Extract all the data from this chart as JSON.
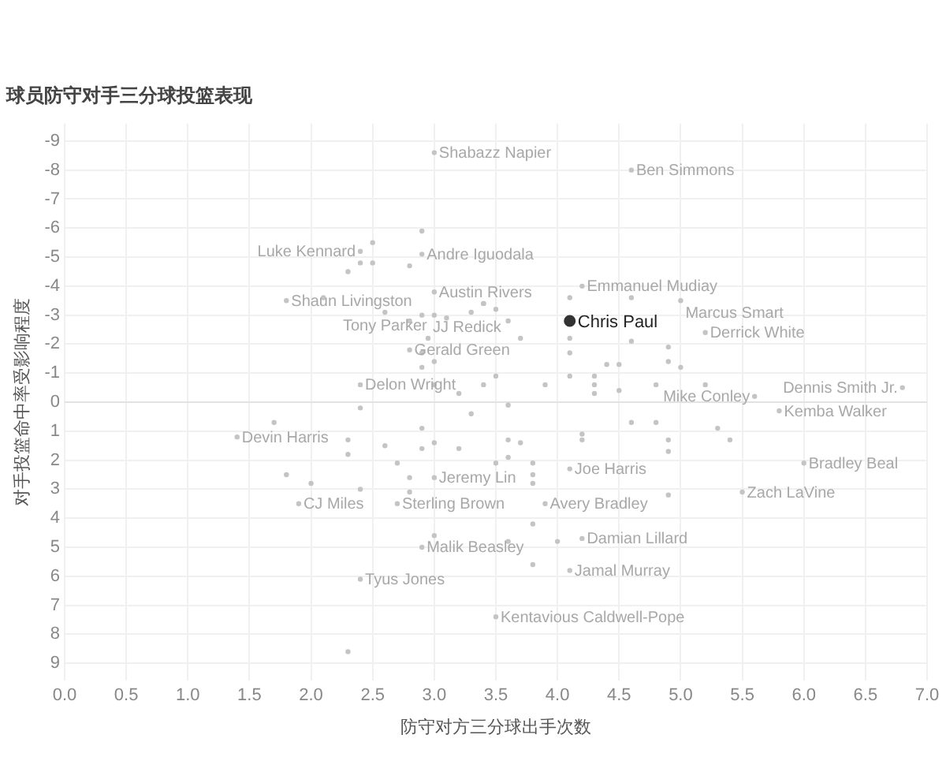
{
  "chart_data": {
    "type": "scatter",
    "title": "球员防守对手三分球投篮表现",
    "xlabel": "防守对方三分球出手次数",
    "ylabel": "对手投篮命中率受影响程度",
    "xlim": [
      0,
      7.0
    ],
    "xticks": [
      {
        "value": 0,
        "label": "0.0"
      },
      {
        "value": 0.5,
        "label": "0.5"
      },
      {
        "value": 1,
        "label": "1.0"
      },
      {
        "value": 1.5,
        "label": "1.5"
      },
      {
        "value": 2,
        "label": "2.0"
      },
      {
        "value": 2.5,
        "label": "2.5"
      },
      {
        "value": 3,
        "label": "3.0"
      },
      {
        "value": 3.5,
        "label": "3.5"
      },
      {
        "value": 4,
        "label": "4.0"
      },
      {
        "value": 4.5,
        "label": "4.5"
      },
      {
        "value": 5,
        "label": "5.0"
      },
      {
        "value": 5.5,
        "label": "5.5"
      },
      {
        "value": 6,
        "label": "6.0"
      },
      {
        "value": 6.5,
        "label": "6.5"
      },
      {
        "value": 7,
        "label": "7.0"
      }
    ],
    "ylim": [
      9.6,
      -9.6
    ],
    "yticks": [
      9,
      8,
      7,
      6,
      5,
      4,
      3,
      2,
      1,
      0,
      -1,
      -2,
      -3,
      -4,
      -5,
      -6,
      -7,
      -8,
      -9
    ],
    "grid": true,
    "legend": false,
    "marker": "circle",
    "series": [
      {
        "color": "#c4c4c4",
        "x": [
          3.0,
          4.6,
          2.4,
          2.9,
          1.8,
          3.0,
          2.6,
          2.8,
          2.95,
          2.4,
          4.2,
          5.0,
          5.2,
          6.8,
          5.6,
          5.8,
          1.4,
          1.9,
          2.7,
          3.0,
          2.9,
          2.4,
          3.5,
          4.1,
          3.9,
          4.2,
          4.1,
          5.5,
          6.0,
          2.1,
          2.5,
          2.4,
          2.5,
          2.3,
          2.9,
          2.8,
          3.4,
          3.3,
          2.9,
          3.0,
          3.1,
          2.8,
          2.9,
          3.0,
          2.9,
          3.0,
          3.2,
          3.4,
          3.4,
          3.5,
          3.6,
          4.1,
          4.6,
          3.7,
          4.1,
          4.1,
          4.6,
          4.9,
          4.4,
          4.5,
          4.9,
          5.0,
          3.5,
          4.1,
          4.3,
          3.9,
          4.3,
          4.5,
          4.8,
          4.3,
          5.2,
          3.3,
          3.6,
          4.6,
          4.8,
          5.3,
          2.4,
          1.7,
          2.3,
          2.3,
          2.6,
          2.9,
          2.9,
          3.0,
          3.2,
          2.7,
          1.8,
          2.0,
          2.4,
          2.8,
          2.8,
          3.0,
          2.3,
          4.2,
          4.2,
          4.9,
          4.9,
          5.4,
          3.6,
          3.7,
          3.5,
          3.6,
          3.8,
          3.8,
          3.8,
          4.9,
          3.8,
          3.6,
          4.0,
          3.8
        ],
        "values": [
          -8.6,
          -8.0,
          -5.2,
          -5.1,
          -3.5,
          -3.8,
          -3.1,
          -1.8,
          -2.2,
          -0.6,
          -4.0,
          -3.5,
          -2.4,
          -0.5,
          -0.2,
          0.3,
          1.2,
          3.5,
          3.5,
          2.6,
          5.0,
          6.1,
          7.4,
          2.3,
          3.5,
          4.7,
          5.8,
          3.1,
          2.1,
          -3.6,
          -5.5,
          -4.8,
          -4.8,
          -4.5,
          -5.9,
          -4.7,
          -3.4,
          -3.1,
          -3.0,
          -3.0,
          -2.9,
          -2.8,
          -1.7,
          -1.4,
          -1.2,
          -0.6,
          -0.3,
          -0.6,
          -3.4,
          -3.2,
          -2.8,
          -3.6,
          -3.6,
          -2.2,
          -2.2,
          -1.7,
          -2.1,
          -1.9,
          -1.3,
          -1.3,
          -1.4,
          -1.2,
          -0.9,
          -0.9,
          -0.9,
          -0.6,
          -0.6,
          -0.4,
          -0.6,
          -0.3,
          -0.6,
          0.4,
          0.1,
          0.7,
          0.7,
          0.9,
          0.2,
          0.7,
          1.3,
          1.8,
          1.5,
          0.9,
          1.6,
          1.4,
          1.6,
          2.1,
          2.5,
          2.8,
          3.0,
          2.6,
          3.1,
          4.6,
          8.6,
          1.1,
          1.3,
          1.3,
          1.7,
          1.3,
          1.3,
          1.4,
          2.1,
          1.9,
          2.1,
          2.5,
          2.8,
          3.2,
          4.2,
          4.8,
          4.8,
          5.6
        ]
      },
      {
        "name": "Chris Paul",
        "color": "#333333",
        "x": [
          4.1
        ],
        "values": [
          -2.8
        ]
      }
    ],
    "annotations": [
      {
        "text": "Shabazz Napier",
        "x": 3.0,
        "y": -8.6
      },
      {
        "text": "Ben Simmons",
        "x": 4.6,
        "y": -8.0
      },
      {
        "text": "Luke Kennard",
        "x": 2.4,
        "y": -5.2
      },
      {
        "text": "Andre Iguodala",
        "x": 2.9,
        "y": -5.1
      },
      {
        "text": "Shaun Livingston",
        "x": 1.8,
        "y": -3.5
      },
      {
        "text": "Austin Rivers",
        "x": 3.0,
        "y": -3.8
      },
      {
        "text": "Tony Parker",
        "x": 2.6,
        "y": -3.1
      },
      {
        "text": "Gerald Green",
        "x": 2.8,
        "y": -1.8
      },
      {
        "text": "JJ Redick",
        "x": 2.95,
        "y": -2.2
      },
      {
        "text": "Delon Wright",
        "x": 2.4,
        "y": -0.6
      },
      {
        "text": "Emmanuel Mudiay",
        "x": 4.2,
        "y": -4.0
      },
      {
        "text": "Marcus Smart",
        "x": 5.0,
        "y": -3.5
      },
      {
        "text": "Derrick White",
        "x": 5.2,
        "y": -2.4
      },
      {
        "text": "Dennis Smith Jr.",
        "x": 6.8,
        "y": -0.5
      },
      {
        "text": "Mike Conley",
        "x": 5.6,
        "y": -0.2
      },
      {
        "text": "Kemba Walker",
        "x": 5.8,
        "y": 0.3
      },
      {
        "text": "Devin Harris",
        "x": 1.4,
        "y": 1.2
      },
      {
        "text": "CJ Miles",
        "x": 1.9,
        "y": 3.5
      },
      {
        "text": "Sterling Brown",
        "x": 2.7,
        "y": 3.5
      },
      {
        "text": "Jeremy Lin",
        "x": 3.0,
        "y": 2.6
      },
      {
        "text": "Malik Beasley",
        "x": 2.9,
        "y": 5.0
      },
      {
        "text": "Tyus Jones",
        "x": 2.4,
        "y": 6.1
      },
      {
        "text": "Kentavious Caldwell-Pope",
        "x": 3.5,
        "y": 7.4
      },
      {
        "text": "Joe Harris",
        "x": 4.1,
        "y": 2.3
      },
      {
        "text": "Avery Bradley",
        "x": 3.9,
        "y": 3.5
      },
      {
        "text": "Damian Lillard",
        "x": 4.2,
        "y": 4.7
      },
      {
        "text": "Jamal Murray",
        "x": 4.1,
        "y": 5.8
      },
      {
        "text": "Zach LaVine",
        "x": 5.5,
        "y": 3.1
      },
      {
        "text": "Bradley Beal",
        "x": 6.0,
        "y": 2.1
      }
    ]
  }
}
